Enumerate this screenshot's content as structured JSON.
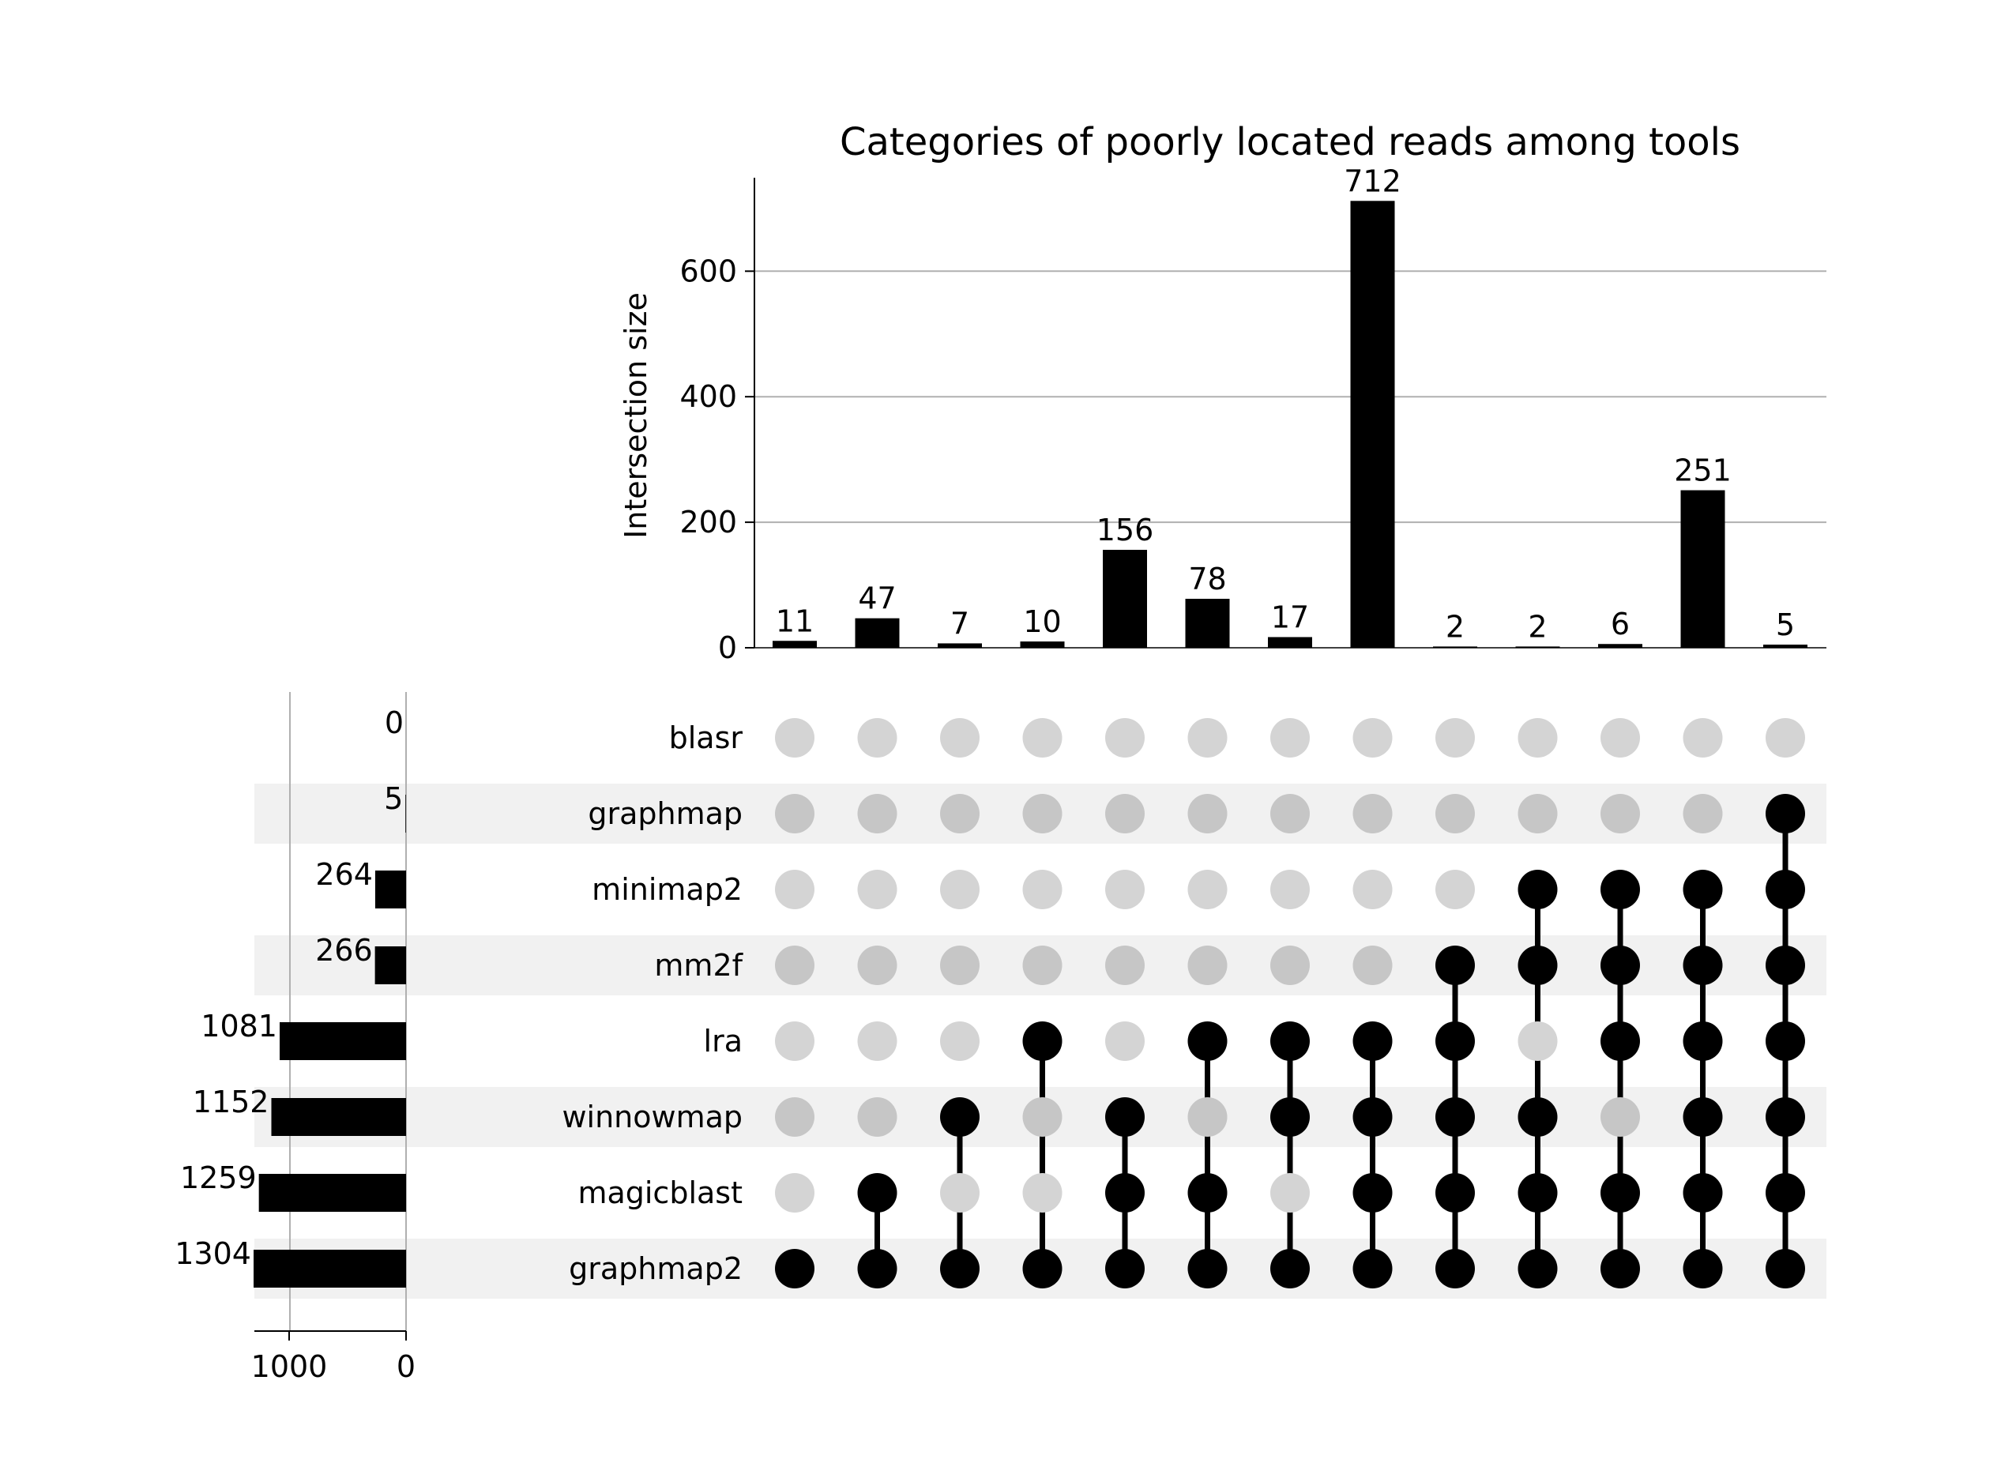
{
  "chart_data": {
    "type": "upset",
    "title": "Categories of poorly located reads among tools",
    "intersection_axis": {
      "ylabel": "Intersection size",
      "ylim": [
        0,
        750
      ],
      "ticks": [
        0,
        200,
        400,
        600
      ],
      "grid": true
    },
    "set_size_axis": {
      "direction": "reversed",
      "ticks": [
        1000,
        0
      ]
    },
    "sets": [
      {
        "name": "blasr",
        "size": 0
      },
      {
        "name": "graphmap",
        "size": 5
      },
      {
        "name": "minimap2",
        "size": 264
      },
      {
        "name": "mm2f",
        "size": 266
      },
      {
        "name": "lra",
        "size": 1081
      },
      {
        "name": "winnowmap",
        "size": 1152
      },
      {
        "name": "magicblast",
        "size": 1259
      },
      {
        "name": "graphmap2",
        "size": 1304
      }
    ],
    "intersections": [
      {
        "value": 11,
        "members": [
          "graphmap2"
        ]
      },
      {
        "value": 47,
        "members": [
          "magicblast",
          "graphmap2"
        ]
      },
      {
        "value": 7,
        "members": [
          "winnowmap",
          "graphmap2"
        ]
      },
      {
        "value": 10,
        "members": [
          "lra",
          "graphmap2"
        ]
      },
      {
        "value": 156,
        "members": [
          "winnowmap",
          "magicblast",
          "graphmap2"
        ]
      },
      {
        "value": 78,
        "members": [
          "lra",
          "magicblast",
          "graphmap2"
        ]
      },
      {
        "value": 17,
        "members": [
          "lra",
          "winnowmap",
          "graphmap2"
        ]
      },
      {
        "value": 712,
        "members": [
          "lra",
          "winnowmap",
          "magicblast",
          "graphmap2"
        ]
      },
      {
        "value": 2,
        "members": [
          "mm2f",
          "lra",
          "winnowmap",
          "magicblast",
          "graphmap2"
        ]
      },
      {
        "value": 2,
        "members": [
          "minimap2",
          "mm2f",
          "winnowmap",
          "magicblast",
          "graphmap2"
        ]
      },
      {
        "value": 6,
        "members": [
          "minimap2",
          "mm2f",
          "lra",
          "magicblast",
          "graphmap2"
        ]
      },
      {
        "value": 251,
        "members": [
          "minimap2",
          "mm2f",
          "lra",
          "winnowmap",
          "magicblast",
          "graphmap2"
        ]
      },
      {
        "value": 5,
        "members": [
          "graphmap",
          "minimap2",
          "mm2f",
          "lra",
          "winnowmap",
          "magicblast",
          "graphmap2"
        ]
      }
    ],
    "colors": {
      "bar": "#000000",
      "active_dot": "#000000",
      "inactive_dot_light": "#d4d4d4",
      "inactive_dot_shaded": "#c6c6c6",
      "row_shade": "#f1f1f1",
      "grid": "#b0b0b0"
    }
  }
}
